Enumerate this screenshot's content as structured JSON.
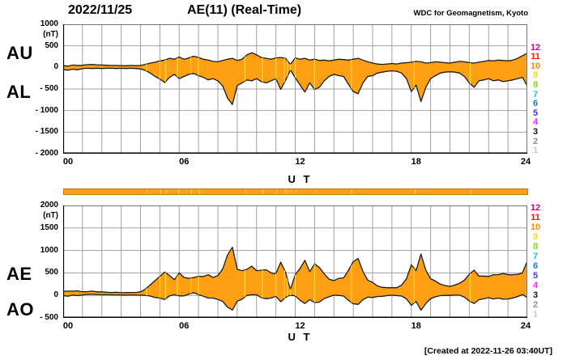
{
  "header": {
    "date": "2022/11/25",
    "title": "AE(11) (Real-Time)",
    "source": "WDC for Geomagnetism, Kyoto"
  },
  "labels": {
    "au": "AU",
    "al": "AL",
    "ae": "AE",
    "ao": "AO"
  },
  "footer": {
    "created": "[Created at 2022-11-26 03:40UT]"
  },
  "colors": {
    "fill": "#FFA014",
    "outline": "#1A1A1A",
    "grid": "#A0A0A0",
    "border": "#777777",
    "axis": "#000000"
  },
  "coverage_bar": {
    "color": "#FFA014",
    "border": "#C07C00",
    "gap_color": "#FFD63C"
  },
  "data_gap_hours": [
    4.3,
    5.0,
    5.3,
    5.9,
    6.6,
    7.0,
    9.4,
    10.3,
    11.0,
    11.45,
    11.6,
    11.75,
    12.0,
    13.0,
    14.9,
    18.15,
    21.05
  ],
  "legend_stations": [
    {
      "label": "12",
      "color": "#E8017D"
    },
    {
      "label": "11",
      "color": "#FB1A0F"
    },
    {
      "label": "10",
      "color": "#FD8C0B"
    },
    {
      "label": "9",
      "color": "#FFD90F"
    },
    {
      "label": "8",
      "color": "#7EDB12"
    },
    {
      "label": "7",
      "color": "#1FC8DE"
    },
    {
      "label": "6",
      "color": "#1E78F0"
    },
    {
      "label": "5",
      "color": "#4436E6"
    },
    {
      "label": "4",
      "color": "#F52AF5"
    },
    {
      "label": "3",
      "color": "#141414"
    },
    {
      "label": "2",
      "color": "#8E8E8E"
    },
    {
      "label": "1",
      "color": "#C9C9C9"
    }
  ],
  "chart_data": [
    {
      "type": "area",
      "title": "AU / AL auroral electrojet indices",
      "xlabel": "U T",
      "ylabel": "(nT)",
      "ylim": [
        -2000,
        1000
      ],
      "x_start_hour": 0,
      "x_end_hour": 24,
      "x_step_hours": 0.25,
      "grid": true,
      "xticks": [
        {
          "label": "00",
          "hour": 0
        },
        {
          "label": "06",
          "hour": 6
        },
        {
          "label": "12",
          "hour": 12
        },
        {
          "label": "18",
          "hour": 18
        },
        {
          "label": "24",
          "hour": 24
        }
      ],
      "yticks": [
        {
          "label": "1000",
          "value": 1000
        },
        {
          "label": "500",
          "value": 500
        },
        {
          "label": "0",
          "value": 0
        },
        {
          "label": "- 500",
          "value": -500
        },
        {
          "label": "- 1000",
          "value": -1000
        },
        {
          "label": "- 1500",
          "value": -1500
        },
        {
          "label": "- 2000",
          "value": -2000
        }
      ],
      "series": [
        {
          "name": "AU",
          "values": [
            40,
            30,
            55,
            45,
            50,
            65,
            70,
            60,
            55,
            50,
            45,
            45,
            40,
            40,
            45,
            40,
            45,
            70,
            100,
            120,
            150,
            170,
            210,
            190,
            240,
            190,
            220,
            260,
            230,
            190,
            170,
            140,
            130,
            160,
            190,
            210,
            160,
            190,
            290,
            340,
            290,
            230,
            210,
            190,
            220,
            230,
            210,
            70,
            220,
            190,
            210,
            170,
            190,
            160,
            170,
            150,
            170,
            190,
            180,
            170,
            190,
            210,
            170,
            130,
            100,
            80,
            70,
            80,
            90,
            80,
            100,
            110,
            120,
            140,
            130,
            100,
            110,
            130,
            120,
            110,
            100,
            120,
            140,
            130,
            110,
            100,
            120,
            140,
            160,
            150,
            170,
            160,
            150,
            170,
            210,
            270,
            330
          ]
        },
        {
          "name": "AL",
          "values": [
            -50,
            -65,
            -40,
            -55,
            -30,
            -20,
            -25,
            -20,
            -25,
            -20,
            -20,
            -25,
            -20,
            -25,
            -20,
            -25,
            -35,
            -70,
            -130,
            -210,
            -270,
            -350,
            -230,
            -160,
            -260,
            -210,
            -160,
            -140,
            -190,
            -230,
            -290,
            -260,
            -310,
            -430,
            -710,
            -860,
            -420,
            -360,
            -290,
            -310,
            -260,
            -330,
            -360,
            -310,
            -260,
            -510,
            -300,
            -60,
            -240,
            -410,
            -570,
            -360,
            -510,
            -460,
            -310,
            -210,
            -160,
            -190,
            -210,
            -390,
            -560,
            -610,
            -360,
            -210,
            -190,
            -130,
            -110,
            -90,
            -80,
            -90,
            -130,
            -260,
            -560,
            -410,
            -790,
            -460,
            -260,
            -190,
            -130,
            -110,
            -100,
            -110,
            -130,
            -210,
            -360,
            -460,
            -310,
            -290,
            -260,
            -310,
            -290,
            -330,
            -310,
            -290,
            -260,
            -230,
            -430
          ]
        }
      ]
    },
    {
      "type": "area",
      "title": "AE / AO auroral electrojet indices",
      "xlabel": "U T",
      "ylabel": "(nT)",
      "ylim": [
        -500,
        2000
      ],
      "x_start_hour": 0,
      "x_end_hour": 24,
      "x_step_hours": 0.25,
      "grid": true,
      "xticks": [
        {
          "label": "00",
          "hour": 0
        },
        {
          "label": "06",
          "hour": 6
        },
        {
          "label": "12",
          "hour": 12
        },
        {
          "label": "18",
          "hour": 18
        },
        {
          "label": "24",
          "hour": 24
        }
      ],
      "yticks": [
        {
          "label": "2000",
          "value": 2000
        },
        {
          "label": "1500",
          "value": 1500
        },
        {
          "label": "1000",
          "value": 1000
        },
        {
          "label": "500",
          "value": 500
        },
        {
          "label": "0",
          "value": 0
        },
        {
          "label": "- 500",
          "value": -500
        }
      ],
      "series": [
        {
          "name": "AE",
          "values": [
            90,
            95,
            95,
            100,
            80,
            85,
            95,
            80,
            80,
            70,
            65,
            70,
            60,
            65,
            65,
            65,
            80,
            140,
            230,
            330,
            420,
            520,
            440,
            350,
            500,
            400,
            380,
            400,
            420,
            420,
            460,
            400,
            440,
            590,
            900,
            1070,
            580,
            550,
            580,
            650,
            550,
            560,
            570,
            500,
            480,
            740,
            510,
            130,
            460,
            600,
            780,
            530,
            700,
            620,
            480,
            360,
            330,
            380,
            390,
            560,
            750,
            820,
            530,
            340,
            290,
            210,
            180,
            170,
            170,
            170,
            230,
            370,
            680,
            550,
            920,
            560,
            370,
            320,
            250,
            220,
            200,
            230,
            270,
            340,
            470,
            560,
            430,
            430,
            420,
            460,
            460,
            490,
            460,
            460,
            470,
            500,
            760
          ]
        },
        {
          "name": "AO",
          "values": [
            -5,
            -18,
            8,
            -5,
            10,
            23,
            23,
            20,
            15,
            15,
            13,
            10,
            10,
            8,
            13,
            8,
            5,
            0,
            -15,
            -45,
            -60,
            -90,
            -10,
            15,
            -10,
            -10,
            30,
            60,
            20,
            -20,
            -60,
            -60,
            -90,
            -135,
            -260,
            -325,
            -130,
            -85,
            0,
            15,
            15,
            -50,
            -75,
            -60,
            -20,
            -140,
            -45,
            5,
            -10,
            -110,
            -180,
            -95,
            -160,
            -150,
            -70,
            -30,
            5,
            0,
            -15,
            -110,
            -185,
            -200,
            -95,
            -40,
            -45,
            -25,
            -20,
            -5,
            5,
            -5,
            -15,
            -75,
            -220,
            -135,
            -330,
            -180,
            -75,
            -30,
            -5,
            0,
            0,
            5,
            5,
            -40,
            -125,
            -180,
            -95,
            -75,
            -50,
            -80,
            -60,
            -85,
            -80,
            -60,
            -25,
            20,
            -50
          ]
        }
      ]
    }
  ]
}
